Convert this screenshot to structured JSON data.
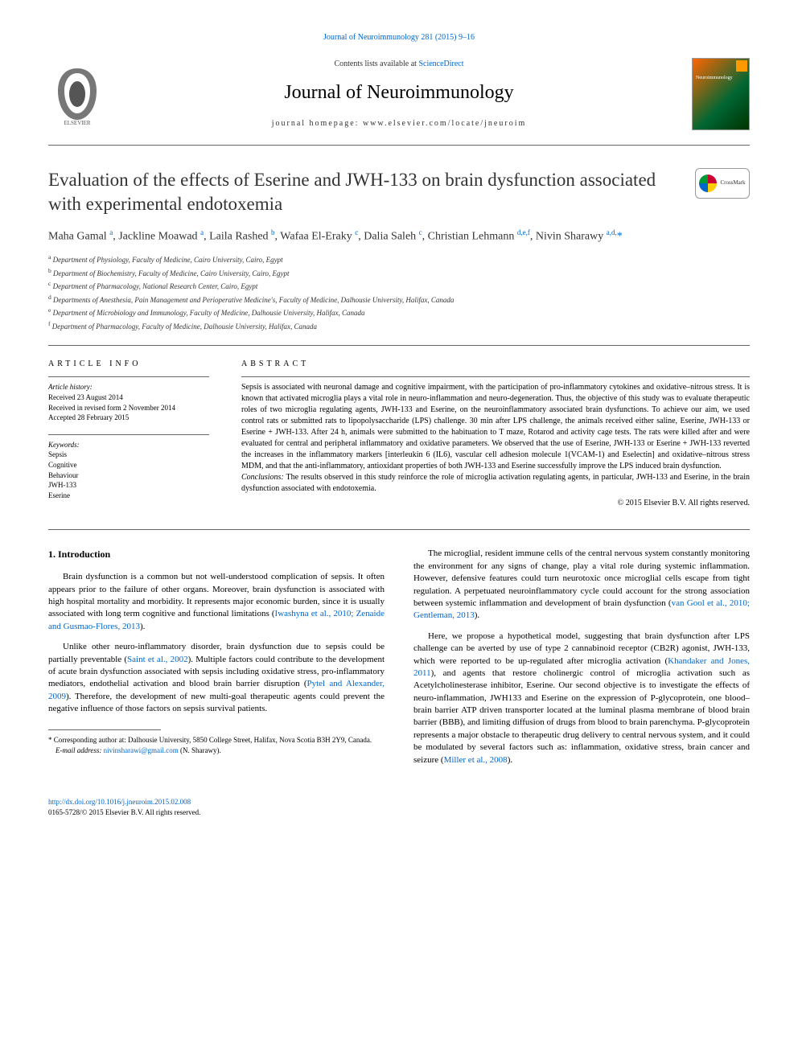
{
  "top_link": "Journal of Neuroimmunology 281 (2015) 9–16",
  "header": {
    "contents_prefix": "Contents lists available at ",
    "contents_link": "ScienceDirect",
    "journal_name": "Journal of Neuroimmunology",
    "homepage_prefix": "journal homepage: ",
    "homepage_url": "www.elsevier.com/locate/jneuroim",
    "cover_label": "Neuroimmunology"
  },
  "crossmark_label": "CrossMark",
  "title": "Evaluation of the effects of Eserine and JWH-133 on brain dysfunction associated with experimental endotoxemia",
  "authors_html": "Maha Gamal <sup>a</sup>, Jackline Moawad <sup>a</sup>, Laila Rashed <sup>b</sup>, Wafaa El-Eraky <sup>c</sup>, Dalia Saleh <sup>c</sup>, Christian Lehmann <sup>d,e,f</sup>, Nivin Sharawy <sup>a,d,</sup><span class=\"star\">*</span>",
  "affiliations": [
    {
      "key": "a",
      "text": "Department of Physiology, Faculty of Medicine, Cairo University, Cairo, Egypt"
    },
    {
      "key": "b",
      "text": "Department of Biochemistry, Faculty of Medicine, Cairo University, Cairo, Egypt"
    },
    {
      "key": "c",
      "text": "Department of Pharmacology, National Research Center, Cairo, Egypt"
    },
    {
      "key": "d",
      "text": "Departments of Anesthesia, Pain Management and Perioperative Medicine's, Faculty of Medicine, Dalhousie University, Halifax, Canada"
    },
    {
      "key": "e",
      "text": "Department of Microbiology and Immunology, Faculty of Medicine, Dalhousie University, Halifax, Canada"
    },
    {
      "key": "f",
      "text": "Department of Pharmacology, Faculty of Medicine, Dalhousie University, Halifax, Canada"
    }
  ],
  "article_info": {
    "heading": "ARTICLE INFO",
    "history_label": "Article history:",
    "history": [
      "Received 23 August 2014",
      "Received in revised form 2 November 2014",
      "Accepted 28 February 2015"
    ],
    "keywords_label": "Keywords:",
    "keywords": [
      "Sepsis",
      "Cognitive",
      "Behaviour",
      "JWH-133",
      "Eserine"
    ]
  },
  "abstract": {
    "heading": "ABSTRACT",
    "body": "Sepsis is associated with neuronal damage and cognitive impairment, with the participation of pro-inflammatory cytokines and oxidative–nitrous stress. It is known that activated microglia plays a vital role in neuro-inflammation and neuro-degeneration. Thus, the objective of this study was to evaluate therapeutic roles of two microglia regulating agents, JWH-133 and Eserine, on the neuroinflammatory associated brain dysfunctions. To achieve our aim, we used control rats or submitted rats to lipopolysaccharide (LPS) challenge. 30 min after LPS challenge, the animals received either saline, Eserine, JWH-133 or Eserine + JWH-133. After 24 h, animals were submitted to the habituation to T maze, Rotarod and activity cage tests. The rats were killed after and were evaluated for central and peripheral inflammatory and oxidative parameters. We observed that the use of Eserine, JWH-133 or Eserine + JWH-133 reverted the increases in the inflammatory markers [interleukin 6 (IL6), vascular cell adhesion molecule 1(VCAM-1) and Eselectin] and oxidative–nitrous stress MDM, and that the anti-inflammatory, antioxidant properties of both JWH-133 and Eserine successfully improve the LPS induced brain dysfunction.",
    "conclusions_label": "Conclusions:",
    "conclusions": " The results observed in this study reinforce the role of microglia activation regulating agents, in particular, JWH-133 and Eserine, in the brain dysfunction associated with endotoxemia.",
    "copyright": "© 2015 Elsevier B.V. All rights reserved."
  },
  "intro": {
    "heading": "1. Introduction",
    "p1_pre": "Brain dysfunction is a common but not well-understood complication of sepsis. It often appears prior to the failure of other organs. Moreover, brain dysfunction is associated with high hospital mortality and morbidity. It represents major economic burden, since it is usually associated with long term cognitive and functional limitations (",
    "p1_cite": "Iwashyna et al., 2010; Zenaide and Gusmao-Flores, 2013",
    "p1_post": ").",
    "p2_pre": "Unlike other neuro-inflammatory disorder, brain dysfunction due to sepsis could be partially preventable (",
    "p2_cite1": "Saint et al., 2002",
    "p2_mid": "). Multiple factors could contribute to the development of acute brain dysfunction associated with sepsis including oxidative stress, pro-inflammatory mediators, endothelial activation and blood brain barrier disruption (",
    "p2_cite2": "Pytel and Alexander, 2009",
    "p2_post": "). Therefore, the development of new multi-goal therapeutic agents could prevent the negative influence of those factors on sepsis survival patients.",
    "p3_pre": "The microglial, resident immune cells of the central nervous system constantly monitoring the environment for any signs of change, play a vital role during systemic inflammation. However, defensive features could turn neurotoxic once microglial cells escape from tight regulation. A perpetuated neuroinflammatory cycle could account for the strong association between systemic inflammation and development of brain dysfunction (",
    "p3_cite": "van Gool et al., 2010; Gentleman, 2013",
    "p3_post": ").",
    "p4_pre": "Here, we propose a hypothetical model, suggesting that brain dysfunction after LPS challenge can be averted by use of type 2 cannabinoid receptor (CB2R) agonist, JWH-133, which were reported to be up-regulated after microglia activation (",
    "p4_cite1": "Khandaker and Jones, 2011",
    "p4_mid": "), and agents that restore cholinergic control of microglia activation such as Acetylcholinesterase inhibitor, Eserine. Our second objective is to investigate the effects of neuro-inflammation, JWH133 and Eserine on the expression of P-glycoprotein, one blood–brain barrier ATP driven transporter located at the luminal plasma membrane of blood brain barrier (BBB), and limiting diffusion of drugs from blood to brain parenchyma. P-glycoprotein represents a major obstacle to therapeutic drug delivery to central nervous system, and it could be modulated by several factors such as: inflammation, oxidative stress, brain cancer and seizure (",
    "p4_cite2": "Miller et al., 2008",
    "p4_post": ")."
  },
  "footnote": {
    "corresponding": "Corresponding author at: Dalhousie University, 5850 College Street, Halifax, Nova Scotia B3H 2Y9, Canada.",
    "email_label": "E-mail address:",
    "email": "nivinsharawi@gmail.com",
    "email_name": "(N. Sharawy)."
  },
  "footer": {
    "doi": "http://dx.doi.org/10.1016/j.jneuroim.2015.02.008",
    "issn_line": "0165-5728/© 2015 Elsevier B.V. All rights reserved."
  },
  "colors": {
    "link": "#0066cc",
    "text": "#000000",
    "rule": "#666666"
  }
}
